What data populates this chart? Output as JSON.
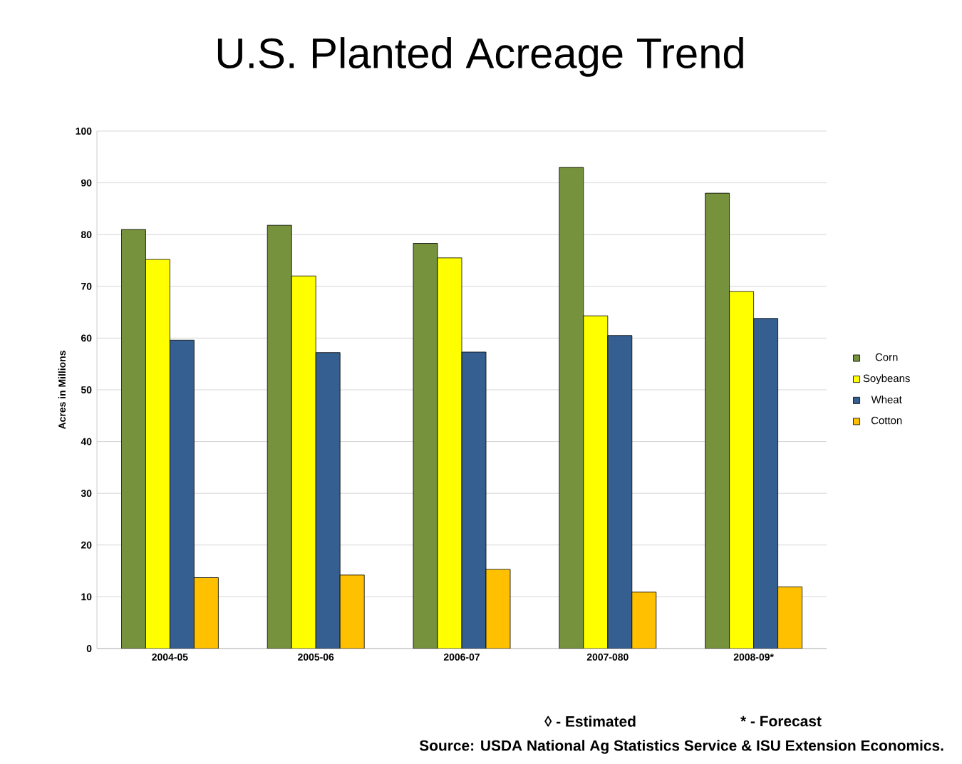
{
  "chart_data": {
    "type": "bar",
    "title": "U.S. Planted Acreage Trend",
    "ylabel": "Acres in Millions",
    "categories": [
      "2004-05",
      "2005-06",
      "2006-07",
      "2007-080",
      "2008-09*"
    ],
    "series": [
      {
        "name": "Corn",
        "color": "#76923c",
        "values": [
          81,
          81.8,
          78.3,
          93,
          88
        ]
      },
      {
        "name": "Soybeans",
        "color": "#ffff00",
        "values": [
          75.2,
          72,
          75.5,
          64.3,
          69
        ]
      },
      {
        "name": "Wheat",
        "color": "#365f91",
        "values": [
          59.6,
          57.2,
          57.3,
          60.5,
          63.8
        ]
      },
      {
        "name": "Cotton",
        "color": "#ffc000",
        "values": [
          13.7,
          14.2,
          15.3,
          10.9,
          11.9
        ]
      }
    ],
    "ylim": [
      0,
      100
    ],
    "yticks": [
      0,
      10,
      20,
      30,
      40,
      50,
      60,
      70,
      80,
      90,
      100
    ],
    "grid": "y",
    "legend": "right",
    "annotations": [
      "◊ - Estimated",
      "* - Forecast",
      "Source:  USDA National Ag Statistics Service & ISU Extension Economics."
    ]
  }
}
